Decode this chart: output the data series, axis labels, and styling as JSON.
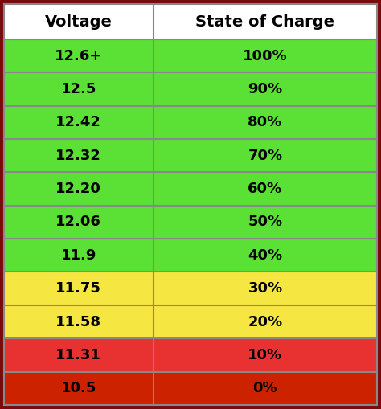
{
  "headers": [
    "Voltage",
    "State of Charge"
  ],
  "rows": [
    [
      "12.6+",
      "100%"
    ],
    [
      "12.5",
      "90%"
    ],
    [
      "12.42",
      "80%"
    ],
    [
      "12.32",
      "70%"
    ],
    [
      "12.20",
      "60%"
    ],
    [
      "12.06",
      "50%"
    ],
    [
      "11.9",
      "40%"
    ],
    [
      "11.75",
      "30%"
    ],
    [
      "11.58",
      "20%"
    ],
    [
      "11.31",
      "10%"
    ],
    [
      "10.5",
      "0%"
    ]
  ],
  "row_colors": [
    "#5be035",
    "#5be035",
    "#5be035",
    "#5be035",
    "#5be035",
    "#5be035",
    "#5be035",
    "#f5e642",
    "#f5e642",
    "#e83232",
    "#cc2200"
  ],
  "header_bg": "#ffffff",
  "header_text_color": "#000000",
  "cell_text_color": "#000000",
  "border_color": "#888888",
  "outer_border_color": "#7a0a0a",
  "figsize": [
    4.74,
    5.09
  ],
  "dpi": 100
}
